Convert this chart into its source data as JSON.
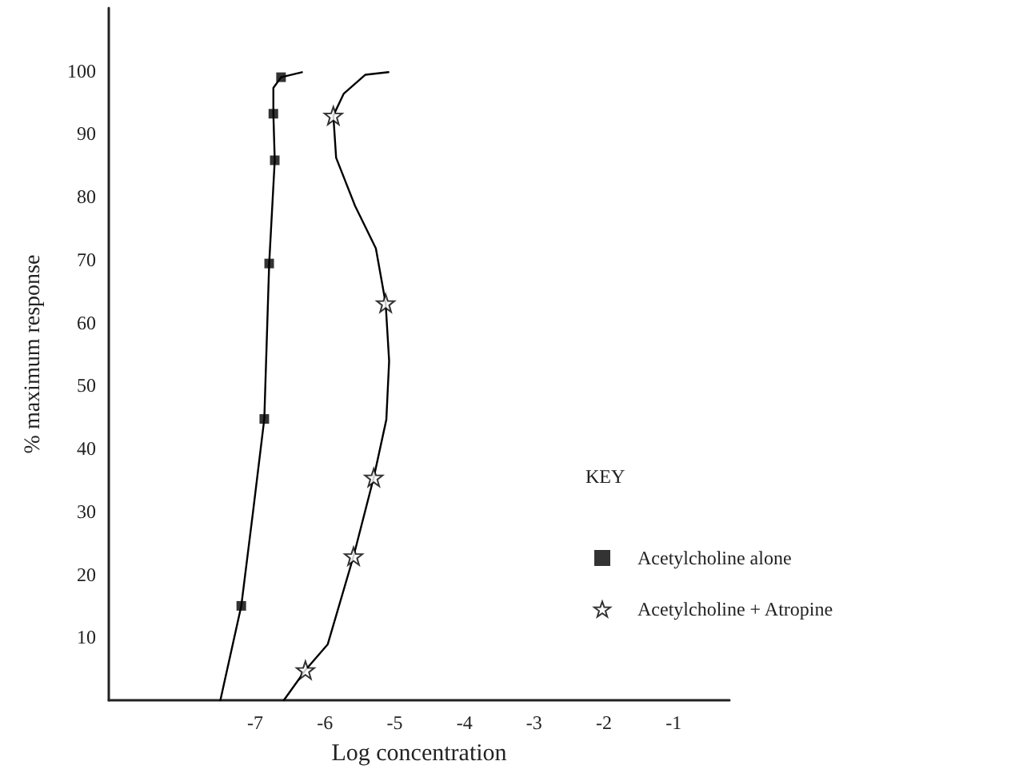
{
  "chart_data": {
    "type": "scatter",
    "xlabel": "Log concentration",
    "ylabel": "% maximum response",
    "legend_title": "KEY",
    "legend": "right",
    "grid": false,
    "xlim": [
      -9.1,
      -0.2
    ],
    "xticks": [
      -7,
      -6,
      -5,
      -4,
      -3,
      -2,
      -1
    ],
    "ylim": [
      0,
      110
    ],
    "yticks": [
      10,
      20,
      30,
      40,
      50,
      60,
      70,
      80,
      90,
      100
    ],
    "series": [
      {
        "type": "line",
        "color": "#000000",
        "marker": "none",
        "line_style": "solid",
        "x": [
          -6.33,
          -6.63,
          -6.74,
          -6.74,
          -6.72,
          -6.8,
          -6.87,
          -7.03,
          -7.2,
          -7.5
        ],
        "values": [
          99.8,
          99,
          97.3,
          93.2,
          85.8,
          69.4,
          44.7,
          30.1,
          15,
          0
        ]
      },
      {
        "type": "line",
        "color": "#000000",
        "marker": "none",
        "line_style": "solid",
        "x": [
          -5.09,
          -5.42,
          -5.73,
          -5.88,
          -5.84,
          -5.57,
          -5.27,
          -5.13,
          -5.08,
          -5.12,
          -5.3,
          -5.59,
          -5.96,
          -6.28,
          -6.59
        ],
        "values": [
          99.8,
          99.4,
          96.4,
          92.9,
          86.2,
          78.6,
          71.8,
          63.1,
          53.9,
          44.6,
          35.4,
          22.9,
          8.9,
          4.8,
          0
        ]
      },
      {
        "name": "Acetylcholine alone",
        "color": "#000000",
        "marker": "square",
        "x": [
          -6.63,
          -6.74,
          -6.72,
          -6.8,
          -6.87,
          -7.2
        ],
        "values": [
          99,
          93.2,
          85.8,
          69.4,
          44.7,
          15
        ]
      },
      {
        "name": "Acetylcholine + Atropine",
        "color": "#000000",
        "marker": "star",
        "x": [
          -5.88,
          -5.13,
          -5.3,
          -5.59,
          -6.28
        ],
        "values": [
          92.9,
          63.1,
          35.4,
          22.9,
          4.8
        ]
      }
    ]
  }
}
